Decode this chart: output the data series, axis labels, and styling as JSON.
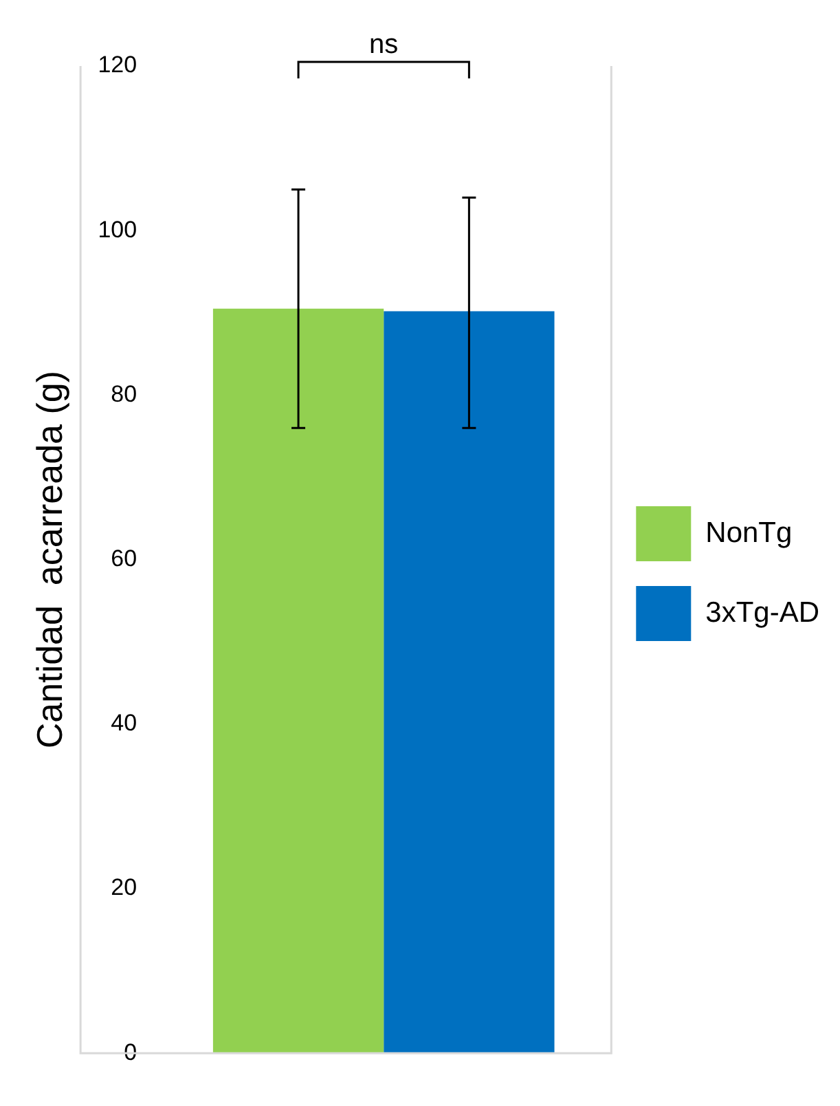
{
  "chart_data": {
    "type": "bar",
    "ylabel": "Cantidad  acarreada (g)",
    "categories": [
      null
    ],
    "series": [
      {
        "name": "NonTg",
        "color": "#92d050",
        "values": [
          90.5
        ],
        "errors": [
          [
            76,
            105
          ]
        ]
      },
      {
        "name": "3xTg-AD",
        "color": "#0070c0",
        "values": [
          90.2
        ],
        "errors": [
          [
            76,
            104
          ]
        ]
      }
    ],
    "ylim": [
      0,
      120
    ],
    "yticks": [
      0,
      20,
      40,
      60,
      80,
      100,
      120
    ],
    "grid": false,
    "legend": "right",
    "annotations": [
      "ns"
    ]
  }
}
